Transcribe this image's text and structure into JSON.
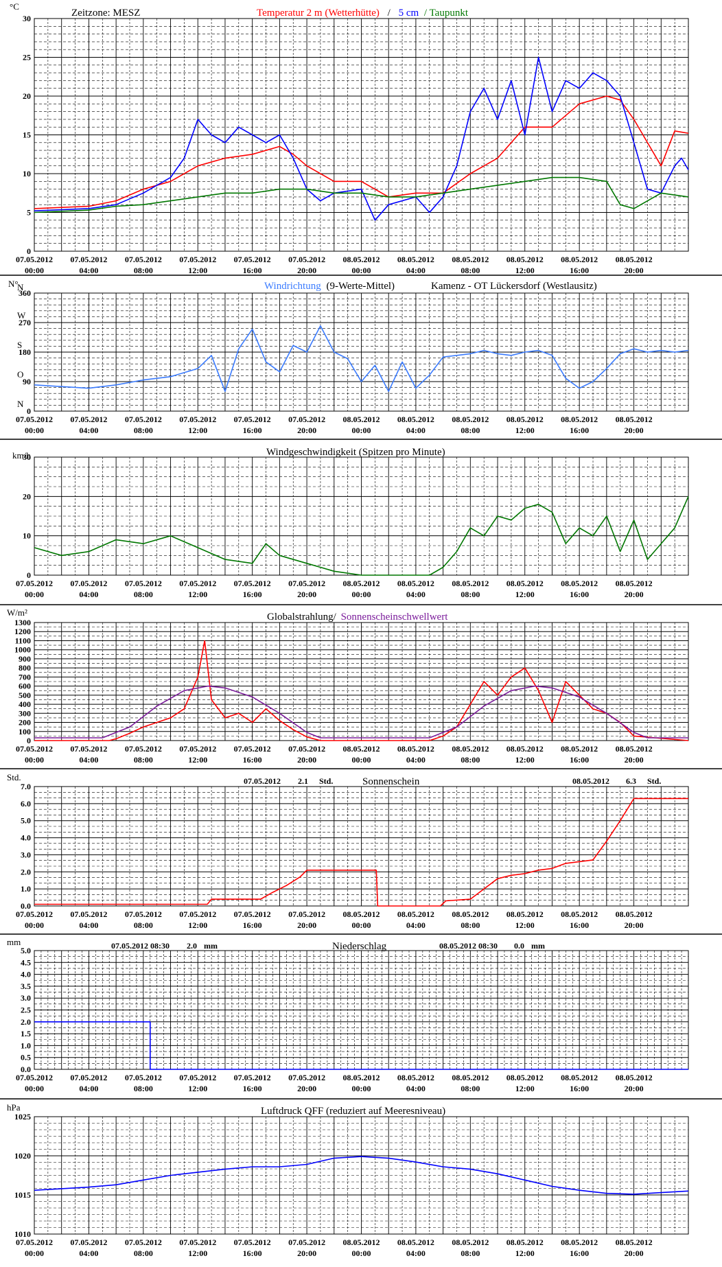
{
  "x_axis": {
    "date_labels": [
      "07.05.2012",
      "07.05.2012",
      "07.05.2012",
      "07.05.2012",
      "07.05.2012",
      "07.05.2012",
      "08.05.2012",
      "08.05.2012",
      "08.05.2012",
      "08.05.2012",
      "08.05.2012",
      "08.05.2012"
    ],
    "time_labels": [
      "00:00",
      "04:00",
      "08:00",
      "12:00",
      "16:00",
      "20:00",
      "00:00",
      "04:00",
      "08:00",
      "12:00",
      "16:00",
      "20:00"
    ],
    "start_hour": 0,
    "end_hour": 48
  },
  "colors": {
    "red": "#ff0000",
    "blue": "#0000ff",
    "green": "#007700",
    "windblue": "#3a7bff",
    "purple": "#7a1a9a",
    "black": "#000000"
  },
  "panels": {
    "temperature": {
      "unit": "°C",
      "title_left": "Zeitzone: MESZ",
      "title_red": "Temperatur 2 m (Wetterhütte)",
      "title_sep": "/",
      "title_blue": "5 cm",
      "title_green": "/ Taupunkt",
      "y_ticks": [
        "0",
        "5",
        "10",
        "15",
        "20",
        "25",
        "30"
      ]
    },
    "wind_direction": {
      "unit": "N°",
      "title_blue": "Windrichtung",
      "title_rest": "(9-Werte-Mittel)",
      "title_station": "Kamenz - OT Lückersdorf (Westlausitz)",
      "y_ticks": [
        "0",
        "90",
        "180",
        "270",
        "360"
      ],
      "compass": [
        "N",
        "O",
        "S",
        "W",
        "N"
      ]
    },
    "wind_speed": {
      "unit": "km/h",
      "title": "Windgeschwindigkeit (Spitzen pro Minute)",
      "y_ticks": [
        "0",
        "10",
        "20",
        "30"
      ]
    },
    "radiation": {
      "unit": "W/m²",
      "title_red": "Globalstrahlung/",
      "title_purple": "Sonnenscheinschwellwert",
      "y_ticks": [
        "0",
        "100",
        "200",
        "300",
        "400",
        "500",
        "600",
        "700",
        "800",
        "900",
        "1000",
        "1100",
        "1200",
        "1300"
      ]
    },
    "sunshine": {
      "unit": "Std.",
      "title": "Sonnenschein",
      "day1_date": "07.05.2012",
      "day1_value": "2.1",
      "day1_unit": "Std.",
      "day2_date": "08.05.2012",
      "day2_value": "6.3",
      "day2_unit": "Std.",
      "y_ticks": [
        "0.0",
        "1.0",
        "2.0",
        "3.0",
        "4.0",
        "5.0",
        "6.0",
        "7.0"
      ]
    },
    "precipitation": {
      "unit": "mm",
      "title": "Niederschlag",
      "day1_label": "07.05.2012 08:30",
      "day1_value": "2.0",
      "day1_unit": "mm",
      "day2_label": "08.05.2012 08:30",
      "day2_value": "0.0",
      "day2_unit": "mm",
      "y_ticks": [
        "0.0",
        "0.5",
        "1.0",
        "1.5",
        "2.0",
        "2.5",
        "3.0",
        "3.5",
        "4.0",
        "4.5",
        "5.0"
      ]
    },
    "pressure": {
      "unit": "hPa",
      "title": "Luftdruck QFF (reduziert auf Meeresniveau)",
      "y_ticks": [
        "1010",
        "1015",
        "1020",
        "1025"
      ]
    }
  },
  "chart_data": [
    {
      "type": "line",
      "title": "Temperatur 2 m (Wetterhütte) / 5 cm / Taupunkt",
      "ylabel": "°C",
      "ylim": [
        0,
        30
      ],
      "x_unit": "hours since 07.05.2012 00:00",
      "series": [
        {
          "name": "Temperatur 2 m (Wetterhütte)",
          "color": "#ff0000",
          "x": [
            0,
            4,
            6,
            8,
            10,
            12,
            14,
            16,
            18,
            19,
            20,
            22,
            24,
            26,
            28,
            30,
            32,
            33,
            34,
            36,
            38,
            40,
            42,
            43,
            44,
            46,
            47,
            48
          ],
          "y": [
            5.5,
            5.8,
            6.5,
            8,
            9,
            11,
            12,
            12.5,
            13.5,
            12.5,
            11,
            9,
            9,
            7,
            7.5,
            7.5,
            10,
            11,
            12,
            16,
            16,
            19,
            20,
            19.5,
            17,
            11,
            15.5,
            15.2
          ]
        },
        {
          "name": "5 cm",
          "color": "#0000ff",
          "x": [
            0,
            4,
            6,
            8,
            10,
            11,
            12,
            13,
            14,
            15,
            16,
            17,
            18,
            19,
            20,
            21,
            22,
            24,
            25,
            26,
            28,
            29,
            30,
            31,
            32,
            33,
            34,
            35,
            36,
            37,
            38,
            39,
            40,
            41,
            42,
            43,
            44,
            45,
            46,
            47,
            47.5,
            48
          ],
          "y": [
            5.2,
            5.5,
            6,
            7.5,
            9.5,
            12,
            17,
            15,
            14,
            16,
            15,
            14,
            15,
            12,
            8,
            6.5,
            7.5,
            8,
            4,
            6,
            7,
            5,
            7,
            11,
            18,
            21,
            17,
            22,
            15,
            25,
            18,
            22,
            21,
            23,
            22,
            20,
            14,
            8,
            7.5,
            11,
            12,
            10.5
          ]
        },
        {
          "name": "Taupunkt",
          "color": "#007700",
          "x": [
            0,
            4,
            6,
            8,
            10,
            12,
            14,
            16,
            18,
            20,
            22,
            24,
            26,
            28,
            30,
            32,
            34,
            36,
            38,
            40,
            42,
            43,
            44,
            46,
            48
          ],
          "y": [
            5,
            5.3,
            5.8,
            6,
            6.5,
            7,
            7.5,
            7.5,
            8,
            8,
            7.5,
            7.5,
            7,
            7,
            7.5,
            8,
            8.5,
            9,
            9.5,
            9.5,
            9,
            6,
            5.5,
            7.5,
            7
          ]
        }
      ]
    },
    {
      "type": "line",
      "title": "Windrichtung (9-Werte-Mittel)",
      "ylabel": "N°",
      "ylim": [
        0,
        360
      ],
      "series": [
        {
          "name": "Windrichtung",
          "color": "#3a7bff",
          "x": [
            0,
            4,
            6,
            8,
            10,
            12,
            13,
            14,
            15,
            16,
            17,
            18,
            19,
            20,
            21,
            22,
            23,
            24,
            25,
            26,
            27,
            28,
            29,
            30,
            31,
            32,
            33,
            34,
            35,
            36,
            37,
            38,
            39,
            40,
            41,
            42,
            43,
            44,
            45,
            46,
            47,
            48
          ],
          "y": [
            80,
            70,
            80,
            95,
            105,
            130,
            170,
            60,
            190,
            250,
            150,
            120,
            200,
            180,
            260,
            180,
            160,
            90,
            140,
            60,
            150,
            70,
            110,
            165,
            170,
            175,
            185,
            175,
            170,
            180,
            185,
            170,
            100,
            70,
            90,
            130,
            175,
            190,
            180,
            185,
            180,
            185
          ]
        }
      ]
    },
    {
      "type": "line",
      "title": "Windgeschwindigkeit (Spitzen pro Minute)",
      "ylabel": "km/h",
      "ylim": [
        0,
        30
      ],
      "series": [
        {
          "name": "Windgeschwindigkeit",
          "color": "#007700",
          "x": [
            0,
            2,
            4,
            6,
            8,
            10,
            12,
            14,
            16,
            17,
            18,
            20,
            21,
            22,
            24,
            26,
            28,
            29,
            30,
            31,
            32,
            33,
            34,
            35,
            36,
            37,
            38,
            39,
            40,
            41,
            42,
            43,
            44,
            45,
            46,
            47,
            48
          ],
          "y": [
            7,
            5,
            6,
            9,
            8,
            10,
            7,
            4,
            3,
            8,
            5,
            3,
            2,
            1,
            0,
            0,
            0,
            0,
            2,
            6,
            12,
            10,
            15,
            14,
            17,
            18,
            16,
            8,
            12,
            10,
            15,
            6,
            14,
            4,
            8,
            12,
            20
          ]
        }
      ]
    },
    {
      "type": "line",
      "title": "Globalstrahlung/ Sonnenscheinschwellwert",
      "ylabel": "W/m²",
      "ylim": [
        0,
        1300
      ],
      "series": [
        {
          "name": "Globalstrahlung",
          "color": "#ff0000",
          "x": [
            0,
            5.5,
            6,
            7,
            8,
            9,
            10,
            11,
            12,
            12.5,
            13,
            14,
            15,
            16,
            17,
            18,
            19,
            20,
            21,
            24,
            29,
            30,
            31,
            32,
            33,
            34,
            35,
            36,
            37,
            38,
            39,
            40,
            41,
            42,
            43,
            44,
            48
          ],
          "y": [
            0,
            0,
            20,
            80,
            150,
            200,
            250,
            350,
            700,
            1100,
            450,
            250,
            300,
            200,
            350,
            220,
            120,
            40,
            0,
            0,
            0,
            50,
            150,
            400,
            650,
            500,
            700,
            800,
            550,
            200,
            650,
            500,
            350,
            300,
            200,
            50,
            0
          ]
        },
        {
          "name": "Sonnenscheinschwellwert",
          "color": "#7a1a9a",
          "x": [
            0,
            5,
            7,
            9,
            11,
            12.75,
            14,
            16,
            18,
            20,
            21,
            24,
            29,
            31,
            33,
            35,
            36.75,
            38,
            40,
            42,
            44,
            45,
            48
          ],
          "y": [
            30,
            30,
            150,
            380,
            550,
            600,
            580,
            480,
            300,
            90,
            30,
            30,
            30,
            150,
            380,
            550,
            600,
            580,
            480,
            300,
            90,
            30,
            30
          ]
        }
      ]
    },
    {
      "type": "line",
      "title": "Sonnenschein",
      "ylabel": "Std.",
      "ylim": [
        0,
        7
      ],
      "series": [
        {
          "name": "Sonnenschein",
          "color": "#ff0000",
          "x": [
            0,
            12.7,
            13,
            16.6,
            17.5,
            18.5,
            19.5,
            20,
            25.1,
            25.2,
            29.8,
            30.2,
            32,
            33,
            34,
            35,
            36,
            37,
            38,
            39,
            40,
            41,
            42,
            43,
            44,
            48
          ],
          "y": [
            0.1,
            0.1,
            0.4,
            0.4,
            0.8,
            1.2,
            1.7,
            2.1,
            2.1,
            0,
            0,
            0.3,
            0.4,
            1.0,
            1.6,
            1.8,
            1.9,
            2.1,
            2.2,
            2.5,
            2.6,
            2.7,
            3.8,
            5.0,
            6.3,
            6.3
          ]
        }
      ]
    },
    {
      "type": "line",
      "title": "Niederschlag",
      "ylabel": "mm",
      "ylim": [
        0,
        5
      ],
      "series": [
        {
          "name": "Niederschlag",
          "color": "#0000ff",
          "x": [
            0,
            8.5,
            8.5,
            48
          ],
          "y": [
            2.0,
            2.0,
            0.0,
            0.0
          ]
        }
      ]
    },
    {
      "type": "line",
      "title": "Luftdruck QFF (reduziert auf Meeresniveau)",
      "ylabel": "hPa",
      "ylim": [
        1010,
        1025
      ],
      "series": [
        {
          "name": "Luftdruck QFF",
          "color": "#0000ff",
          "x": [
            0,
            2,
            4,
            6,
            8,
            10,
            12,
            14,
            16,
            18,
            20,
            22,
            24,
            26,
            28,
            30,
            32,
            34,
            36,
            38,
            40,
            42,
            44,
            46,
            48
          ],
          "y": [
            1015.6,
            1015.8,
            1016,
            1016.3,
            1016.9,
            1017.5,
            1017.9,
            1018.3,
            1018.6,
            1018.6,
            1018.9,
            1019.7,
            1019.9,
            1019.7,
            1019.2,
            1018.6,
            1018.3,
            1017.7,
            1016.9,
            1016.1,
            1015.6,
            1015.2,
            1015.1,
            1015.3,
            1015.5
          ]
        }
      ]
    }
  ]
}
